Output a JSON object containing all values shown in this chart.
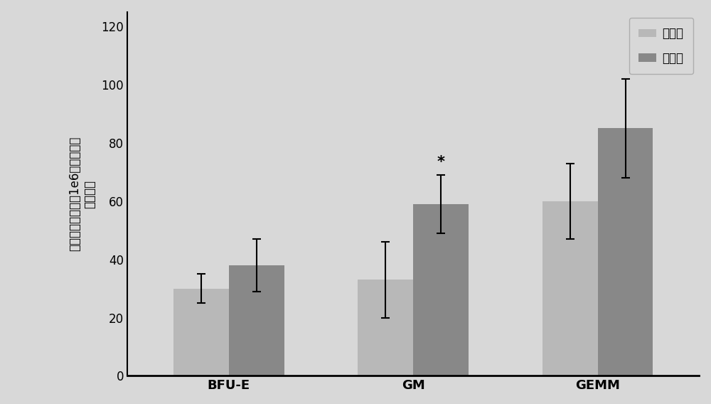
{
  "categories": [
    "BFU-E",
    "GM",
    "GEMM"
  ],
  "control_values": [
    30,
    33,
    60
  ],
  "experiment_values": [
    38,
    59,
    85
  ],
  "control_errors": [
    5,
    13,
    13
  ],
  "experiment_errors": [
    9,
    10,
    17
  ],
  "control_color": "#b8b8b8",
  "experiment_color": "#888888",
  "ylabel_line1": "集落形成数量（每1e6个骨髓单个",
  "ylabel_line2": "核细胞）",
  "ylim": [
    0,
    125
  ],
  "yticks": [
    0,
    20,
    40,
    60,
    80,
    100,
    120
  ],
  "legend_labels": [
    "对照组",
    "实验组"
  ],
  "star_annotation": "*",
  "background_color": "#d8d8d8",
  "bar_width": 0.3,
  "fontsize_ylabel": 12,
  "fontsize_ticks": 12,
  "fontsize_legend": 12,
  "fontsize_xtick": 13
}
